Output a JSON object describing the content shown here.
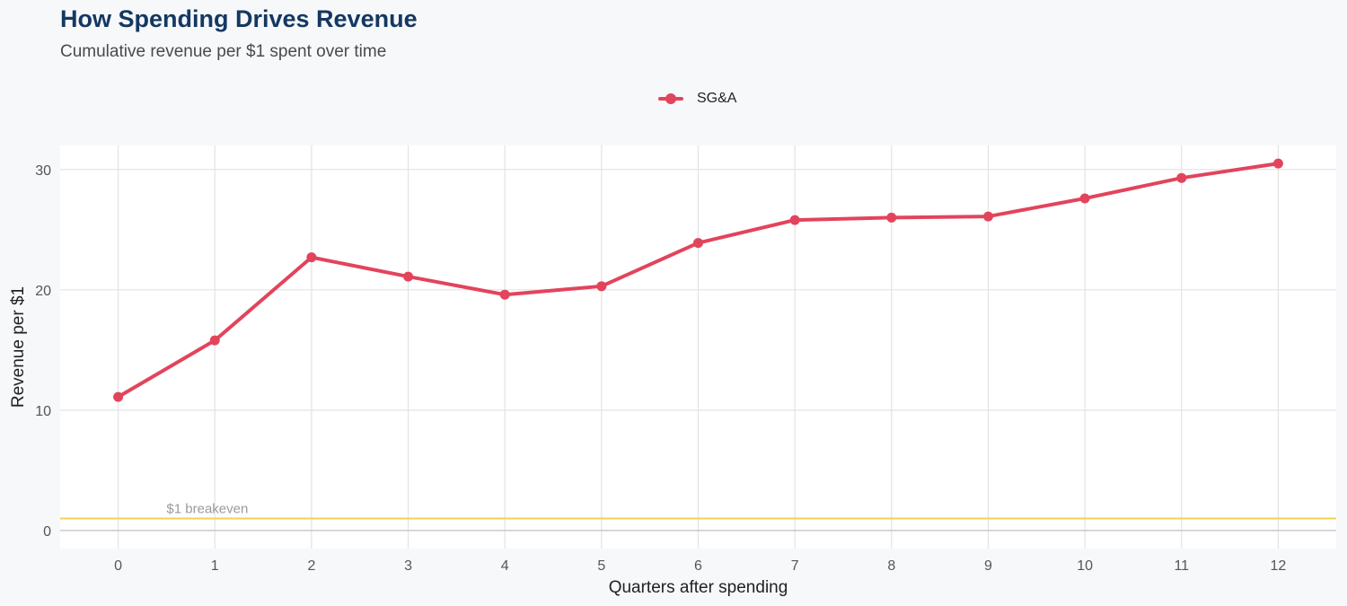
{
  "header": {
    "title": "How Spending Drives Revenue",
    "subtitle": "Cumulative revenue per $1 spent over time"
  },
  "colors": {
    "series": "#e2445c",
    "breakeven": "#f5cf5a",
    "grid": "#e3e3e3",
    "zero_line": "#c9c9c9",
    "panel": "#ffffff"
  },
  "chart_data": {
    "type": "line",
    "title": "How Spending Drives Revenue",
    "subtitle": "Cumulative revenue per $1 spent over time",
    "xlabel": "Quarters after spending",
    "ylabel": "Revenue per $1",
    "x": [
      0,
      1,
      2,
      3,
      4,
      5,
      6,
      7,
      8,
      9,
      10,
      11,
      12
    ],
    "x_tick_labels": [
      "0",
      "1",
      "2",
      "3",
      "4",
      "5",
      "6",
      "7",
      "8",
      "9",
      "10",
      "11",
      "12"
    ],
    "y_ticks": [
      0,
      10,
      20,
      30
    ],
    "y_tick_labels": [
      "0",
      "10",
      "20",
      "30"
    ],
    "xlim": [
      -0.6,
      12.6
    ],
    "ylim": [
      -1.5,
      32
    ],
    "grid": true,
    "legend_position": "top-center",
    "series": [
      {
        "name": "SG&A",
        "values": [
          11.1,
          15.8,
          22.7,
          21.1,
          19.6,
          20.3,
          23.9,
          25.8,
          26.0,
          26.1,
          27.6,
          29.3,
          30.5
        ]
      }
    ],
    "reference_lines": [
      {
        "y": 1,
        "label": "$1 breakeven",
        "label_x": 0.5
      },
      {
        "y": 0,
        "label": ""
      }
    ]
  }
}
